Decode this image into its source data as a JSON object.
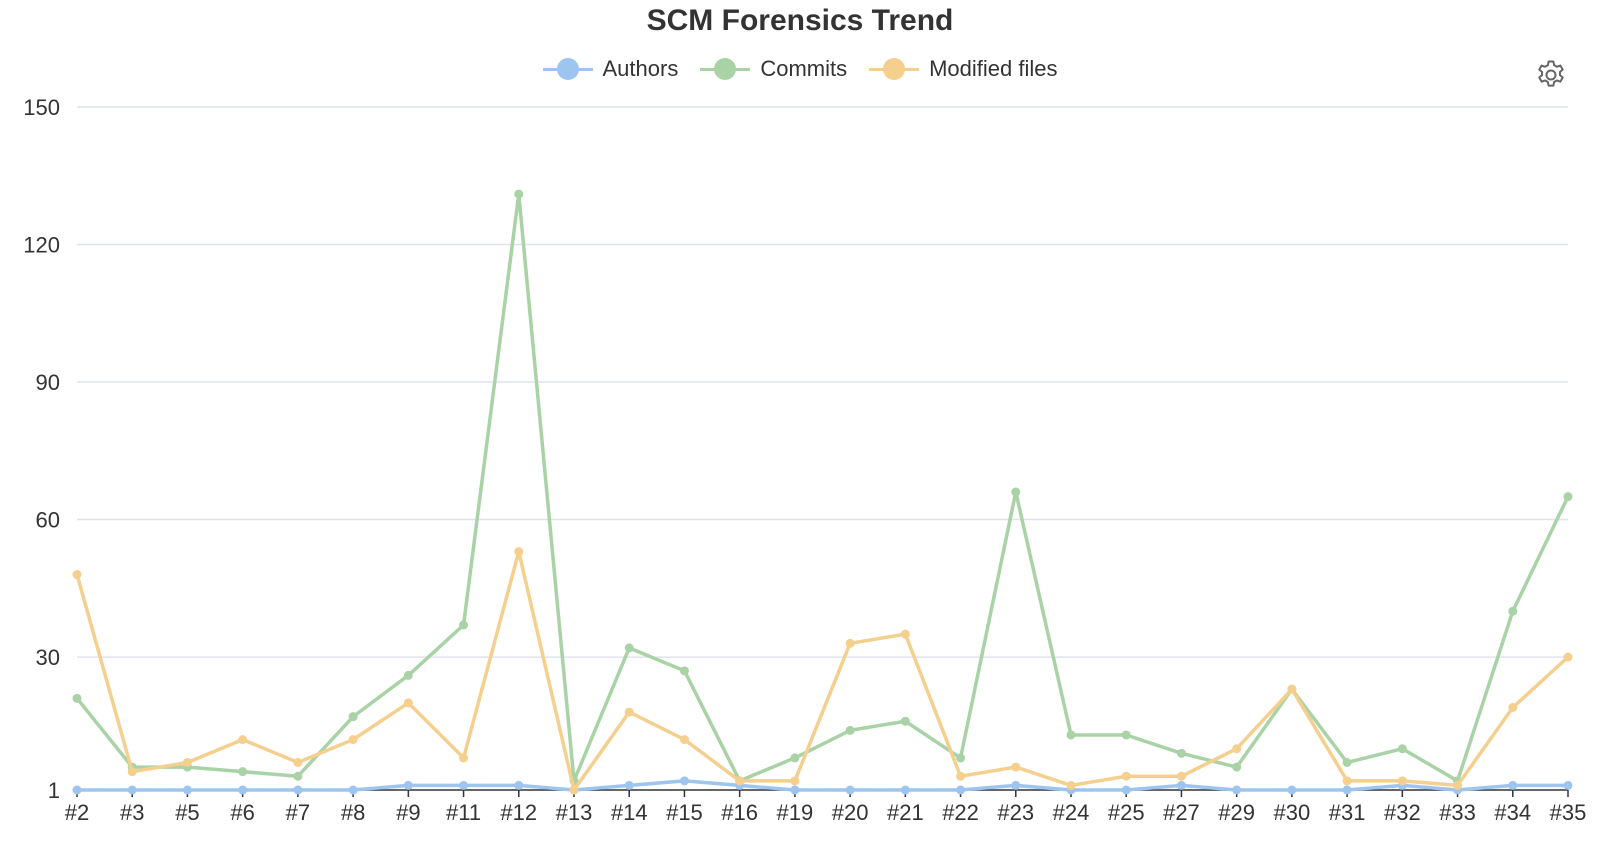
{
  "title": "SCM Forensics Trend",
  "legend": [
    {
      "label": "Authors",
      "color": "#9dc5f0"
    },
    {
      "label": "Commits",
      "color": "#a9d3a6"
    },
    {
      "label": "Modified files",
      "color": "#f5cf8e"
    }
  ],
  "toolbar": {
    "icon": "gear-icon"
  },
  "chart_data": {
    "type": "line",
    "title": "SCM Forensics Trend",
    "xlabel": "",
    "ylabel": "",
    "categories": [
      "#2",
      "#3",
      "#5",
      "#6",
      "#7",
      "#8",
      "#9",
      "#11",
      "#12",
      "#13",
      "#14",
      "#15",
      "#16",
      "#19",
      "#20",
      "#21",
      "#22",
      "#23",
      "#24",
      "#25",
      "#27",
      "#29",
      "#30",
      "#31",
      "#32",
      "#33",
      "#34",
      "#35"
    ],
    "y_ticks": [
      "1",
      "30",
      "60",
      "90",
      "120",
      "150"
    ],
    "ylim": [
      1,
      150
    ],
    "grid": true,
    "legend_position": "top-center",
    "series": [
      {
        "name": "Authors",
        "color": "#9dc5f0",
        "values": [
          1,
          1,
          1,
          1,
          1,
          1,
          2,
          2,
          2,
          1,
          2,
          3,
          2,
          1,
          1,
          1,
          1,
          2,
          1,
          1,
          2,
          1,
          1,
          1,
          2,
          1,
          2,
          2
        ]
      },
      {
        "name": "Commits",
        "color": "#a9d3a6",
        "values": [
          21,
          6,
          6,
          5,
          4,
          17,
          26,
          37,
          131,
          3,
          32,
          27,
          3,
          8,
          14,
          16,
          8,
          66,
          13,
          13,
          9,
          6,
          23,
          7,
          10,
          3,
          40,
          65
        ]
      },
      {
        "name": "Modified files",
        "color": "#f5cf8e",
        "values": [
          48,
          5,
          7,
          12,
          7,
          12,
          20,
          8,
          53,
          1,
          18,
          12,
          3,
          3,
          33,
          35,
          4,
          6,
          2,
          4,
          4,
          10,
          23,
          3,
          3,
          2,
          19,
          30
        ]
      }
    ]
  }
}
